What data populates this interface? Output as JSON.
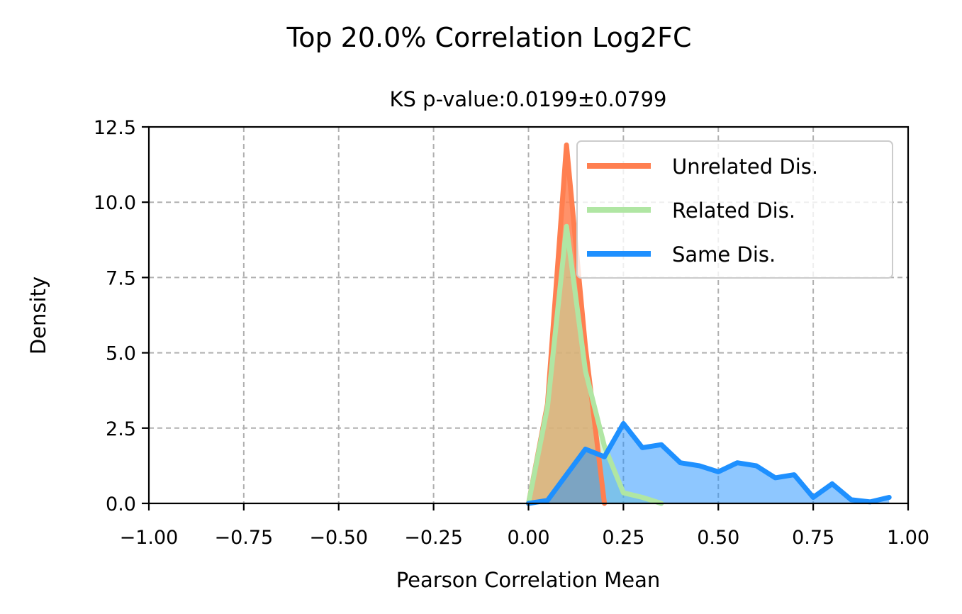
{
  "chart_data": {
    "type": "area",
    "title": "Top 20.0% Correlation Log2FC",
    "subtitle": "KS p-value:0.0199±0.0799",
    "xlabel": "Pearson Correlation Mean",
    "ylabel": "Density",
    "xlim": [
      -1.0,
      1.0
    ],
    "ylim": [
      0.0,
      12.5
    ],
    "xticks": [
      -1.0,
      -0.75,
      -0.5,
      -0.25,
      0.0,
      0.25,
      0.5,
      0.75,
      1.0
    ],
    "xtick_labels": [
      "−1.00",
      "−0.75",
      "−0.50",
      "−0.25",
      "0.00",
      "0.25",
      "0.50",
      "0.75",
      "1.00"
    ],
    "yticks": [
      0.0,
      2.5,
      5.0,
      7.5,
      10.0,
      12.5
    ],
    "ytick_labels": [
      "0.0",
      "2.5",
      "5.0",
      "7.5",
      "10.0",
      "12.5"
    ],
    "grid": true,
    "legend_position": "top-right",
    "series": [
      {
        "name": "Unrelated Dis.",
        "color": "#FF7F50",
        "x": [
          0.0,
          0.05,
          0.1,
          0.15,
          0.2
        ],
        "values": [
          0.0,
          3.3,
          11.9,
          5.2,
          0.0
        ]
      },
      {
        "name": "Related Dis.",
        "color": "#B0E6A3",
        "x": [
          0.0,
          0.05,
          0.1,
          0.15,
          0.2,
          0.25,
          0.3,
          0.35
        ],
        "values": [
          0.0,
          3.2,
          9.2,
          4.4,
          1.9,
          0.35,
          0.2,
          0.0
        ]
      },
      {
        "name": "Same Dis.",
        "color": "#1E90FF",
        "x": [
          0.0,
          0.05,
          0.1,
          0.15,
          0.2,
          0.25,
          0.3,
          0.35,
          0.4,
          0.45,
          0.5,
          0.55,
          0.6,
          0.65,
          0.7,
          0.75,
          0.8,
          0.85,
          0.9,
          0.95
        ],
        "values": [
          0.0,
          0.1,
          0.95,
          1.8,
          1.55,
          2.65,
          1.85,
          1.95,
          1.35,
          1.25,
          1.05,
          1.35,
          1.25,
          0.85,
          0.95,
          0.2,
          0.65,
          0.12,
          0.05,
          0.2
        ]
      }
    ]
  }
}
